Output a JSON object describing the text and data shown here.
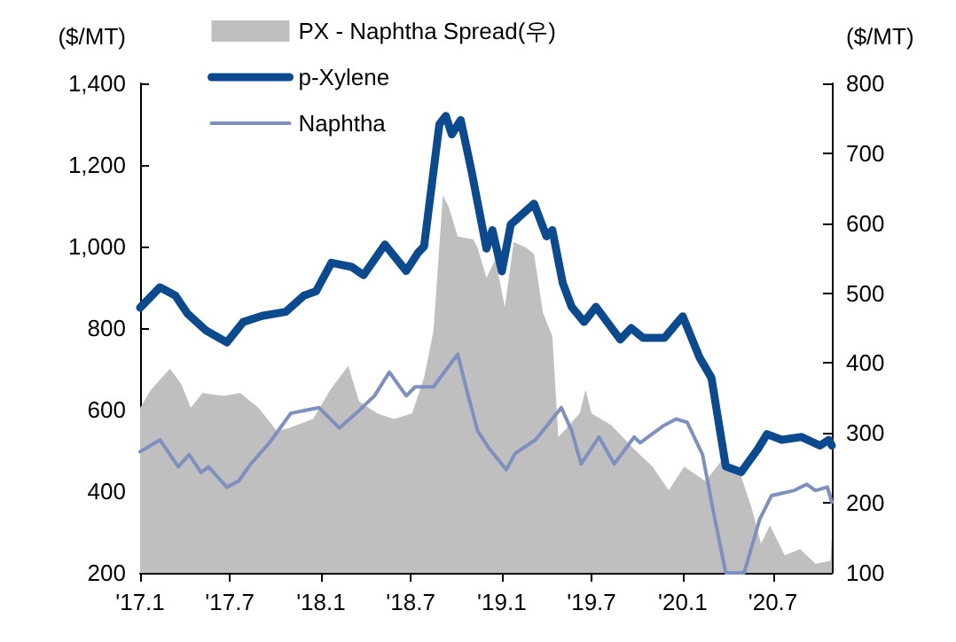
{
  "chart_data": {
    "type": "line",
    "ylabel": "($/MT)",
    "y2label": "($/MT)",
    "legend": "top left",
    "grid": false,
    "marker": "none",
    "xlim": [
      "2017-01-01",
      "2020-10-28"
    ],
    "xticks": [
      {
        "value": "2017-01-01",
        "label": "'17.1"
      },
      {
        "value": "2017-07-01",
        "label": "'17.7"
      },
      {
        "value": "2018-01-01",
        "label": "'18.1"
      },
      {
        "value": "2018-07-01",
        "label": "'18.7"
      },
      {
        "value": "2019-01-01",
        "label": "'19.1"
      },
      {
        "value": "2019-07-01",
        "label": "'19.7"
      },
      {
        "value": "2020-01-01",
        "label": "'20.1"
      },
      {
        "value": "2020-07-01",
        "label": "'20.7"
      }
    ],
    "ylim": [
      200,
      1400
    ],
    "yticks": [
      200,
      400,
      600,
      800,
      {
        "value": 1000,
        "label": "1,000"
      },
      {
        "value": 1200,
        "label": "1,200"
      },
      {
        "value": 1400,
        "label": "1,400"
      }
    ],
    "y2lim": [
      100,
      800
    ],
    "y2ticks": [
      100,
      200,
      300,
      400,
      500,
      600,
      700,
      800
    ],
    "series": [
      {
        "name": "PX - Naphtha Spread(우)",
        "type": "area",
        "axis": "y2",
        "color": "#bfbfbf",
        "x": [
          "2017-01-01",
          "2017-01-22",
          "2017-03-02",
          "2017-03-25",
          "2017-04-13",
          "2017-05-07",
          "2017-06-19",
          "2017-07-22",
          "2017-08-28",
          "2017-10-04",
          "2017-10-28",
          "2017-12-16",
          "2018-01-19",
          "2018-02-25",
          "2018-03-19",
          "2018-04-25",
          "2018-05-28",
          "2018-07-04",
          "2018-07-28",
          "2018-08-16",
          "2018-09-04",
          "2018-09-16",
          "2018-10-04",
          "2018-11-04",
          "2018-11-13",
          "2018-12-01",
          "2018-12-19",
          "2019-01-07",
          "2019-01-25",
          "2019-02-19",
          "2019-03-07",
          "2019-03-25",
          "2019-04-13",
          "2019-04-25",
          "2019-06-07",
          "2019-06-19",
          "2019-07-01",
          "2019-08-10",
          "2019-09-25",
          "2019-11-01",
          "2019-12-04",
          "2020-01-04",
          "2020-02-16",
          "2020-03-19",
          "2020-04-25",
          "2020-05-19",
          "2020-06-07",
          "2020-06-25",
          "2020-07-25",
          "2020-08-25",
          "2020-09-25",
          "2020-10-25",
          "2020-10-28"
        ],
        "values": [
          336,
          361,
          392,
          370,
          336,
          357,
          353,
          357,
          336,
          303,
          307,
          320,
          361,
          396,
          345,
          328,
          320,
          328,
          379,
          446,
          640,
          623,
          581,
          577,
          565,
          522,
          548,
          480,
          573,
          565,
          556,
          472,
          438,
          294,
          328,
          362,
          328,
          311,
          277,
          252,
          218,
          252,
          231,
          260,
          244,
          193,
          142,
          168,
          125,
          134,
          113,
          117,
          151
        ]
      },
      {
        "name": "p-Xylene",
        "type": "line",
        "color": "#0b4a8f",
        "x": [
          "2017-01-01",
          "2017-02-10",
          "2017-03-13",
          "2017-04-07",
          "2017-05-13",
          "2017-06-25",
          "2017-07-28",
          "2017-09-04",
          "2017-10-22",
          "2017-11-28",
          "2017-12-22",
          "2018-01-22",
          "2018-03-04",
          "2018-03-28",
          "2018-05-10",
          "2018-06-22",
          "2018-07-16",
          "2018-07-28",
          "2018-08-28",
          "2018-09-10",
          "2018-09-22",
          "2018-10-10",
          "2018-11-01",
          "2018-12-01",
          "2018-12-13",
          "2019-01-01",
          "2019-01-19",
          "2019-03-07",
          "2019-04-01",
          "2019-04-13",
          "2019-05-04",
          "2019-05-22",
          "2019-06-16",
          "2019-07-10",
          "2019-08-28",
          "2019-09-19",
          "2019-10-13",
          "2019-11-25",
          "2020-01-01",
          "2020-02-04",
          "2020-02-28",
          "2020-03-28",
          "2020-04-28",
          "2020-06-01",
          "2020-06-19",
          "2020-07-19",
          "2020-08-28",
          "2020-10-04",
          "2020-10-22",
          "2020-10-28"
        ],
        "values": [
          850,
          900,
          880,
          835,
          795,
          765,
          815,
          830,
          840,
          880,
          890,
          960,
          950,
          930,
          1005,
          940,
          985,
          1000,
          1300,
          1320,
          1275,
          1310,
          1184,
          995,
          1040,
          939,
          1054,
          1105,
          1025,
          1040,
          910,
          852,
          815,
          852,
          772,
          800,
          776,
          776,
          829,
          728,
          678,
          461,
          447,
          504,
          540,
          526,
          533,
          512,
          526,
          512
        ]
      },
      {
        "name": "Naphtha",
        "type": "line",
        "color": "#7f8fbf",
        "x": [
          "2017-01-01",
          "2017-02-10",
          "2017-03-19",
          "2017-04-10",
          "2017-05-04",
          "2017-05-19",
          "2017-06-25",
          "2017-07-19",
          "2017-08-13",
          "2017-09-19",
          "2017-11-01",
          "2017-11-28",
          "2017-12-28",
          "2018-02-07",
          "2018-03-19",
          "2018-04-19",
          "2018-05-19",
          "2018-06-22",
          "2018-07-10",
          "2018-08-16",
          "2018-10-04",
          "2018-10-19",
          "2018-11-13",
          "2018-12-07",
          "2019-01-10",
          "2019-01-28",
          "2019-03-10",
          "2019-05-01",
          "2019-05-22",
          "2019-06-10",
          "2019-07-16",
          "2019-08-16",
          "2019-09-25",
          "2019-10-07",
          "2019-11-25",
          "2019-12-19",
          "2020-01-10",
          "2020-02-10",
          "2020-03-04",
          "2020-03-28",
          "2020-05-04",
          "2020-06-04",
          "2020-06-28",
          "2020-08-13",
          "2020-09-07",
          "2020-09-25",
          "2020-10-19",
          "2020-10-28"
        ],
        "values": [
          497,
          526,
          460,
          490,
          446,
          460,
          410,
          425,
          468,
          519,
          591,
          598,
          605,
          555,
          598,
          634,
          692,
          634,
          656,
          656,
          736,
          663,
          548,
          504,
          453,
          493,
          526,
          605,
          548,
          467,
          533,
          467,
          533,
          519,
          562,
          577,
          569,
          490,
          344,
          200,
          200,
          330,
          389,
          402,
          417,
          402,
          410,
          373
        ]
      }
    ]
  }
}
